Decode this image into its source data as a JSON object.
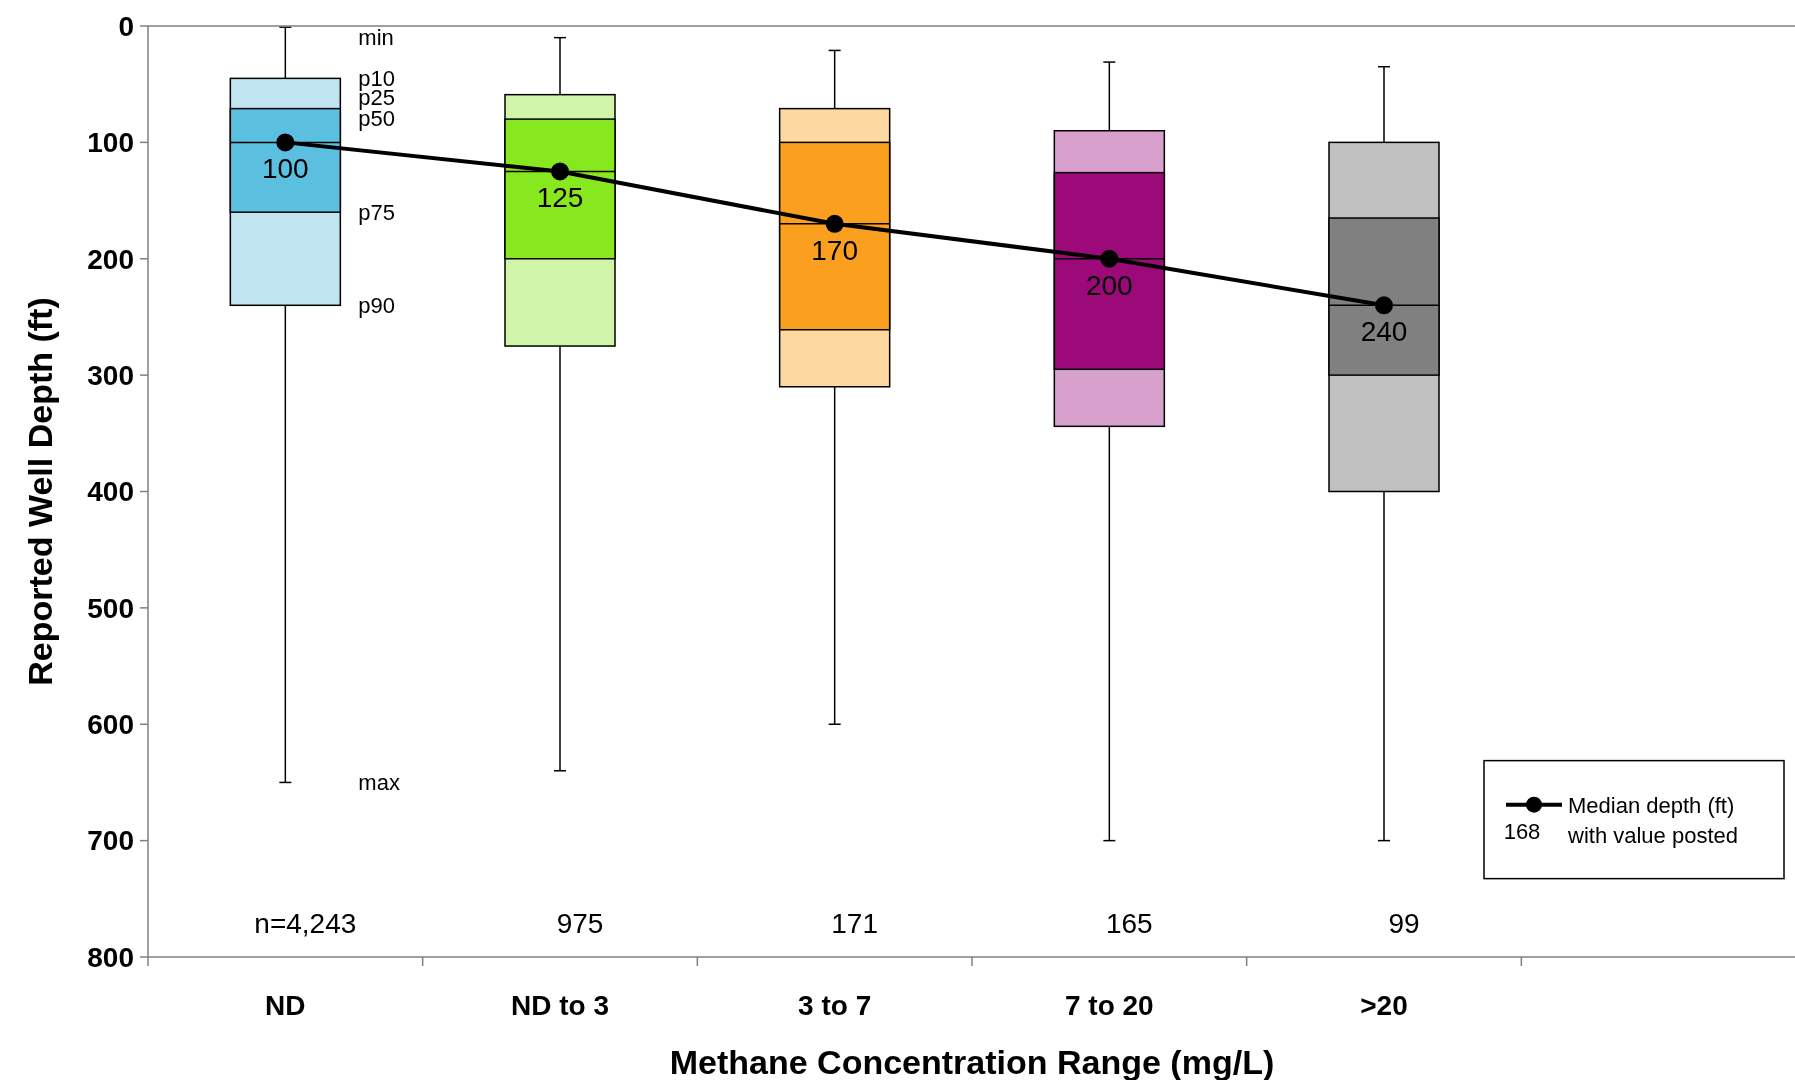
{
  "chart_data": {
    "type": "box",
    "xlabel": "Methane Concentration Range (mg/L)",
    "ylabel": "Reported Well Depth (ft)",
    "categories": [
      "ND",
      "ND to 3",
      "3 to 7",
      "7 to 20",
      ">20",
      null
    ],
    "ylim": [
      800,
      0
    ],
    "yticks": [
      0,
      100,
      200,
      300,
      400,
      500,
      600,
      700,
      800
    ],
    "grid": false,
    "legend": "bottom right",
    "series": [
      {
        "type": "bar",
        "base": [
          45,
          59,
          71,
          90,
          100,
          null
        ],
        "values": [
          195,
          216,
          239,
          254,
          300,
          null
        ],
        "colors": [
          "#c0e4f0",
          "#d0f4a8",
          "#fdd8a0",
          "#d8a0cc",
          "#c0c0c0",
          null
        ]
      },
      {
        "colors": [
          "#5bbfe0",
          "#88e820",
          "#fba01e",
          "#9c0a7a",
          "#808080",
          null
        ],
        "boxes": [
          {
            "low": 1,
            "q1": 71,
            "median": 100,
            "q3": 160,
            "high": 650
          },
          {
            "low": 10,
            "q1": 80,
            "median": 125,
            "q3": 200,
            "high": 640
          },
          {
            "low": 21,
            "q1": 100,
            "median": 170,
            "q3": 261,
            "high": 600
          },
          {
            "low": 31,
            "q1": 126,
            "median": 200,
            "q3": 295,
            "high": 700
          },
          {
            "low": 35,
            "q1": 165,
            "median": 240,
            "q3": 300,
            "high": 700
          },
          null
        ]
      },
      {
        "type": "line",
        "name": "Median depth (ft) with value posted",
        "color": "#000000",
        "marker": "circle",
        "data_labels": true,
        "values": [
          100,
          125,
          170,
          200,
          240,
          null
        ]
      }
    ],
    "annotations": [
      "min",
      "p10",
      "p25",
      "p50",
      "p75",
      "p90",
      "max",
      "n=4,243",
      "975",
      "171",
      "165",
      "99",
      "168"
    ]
  }
}
